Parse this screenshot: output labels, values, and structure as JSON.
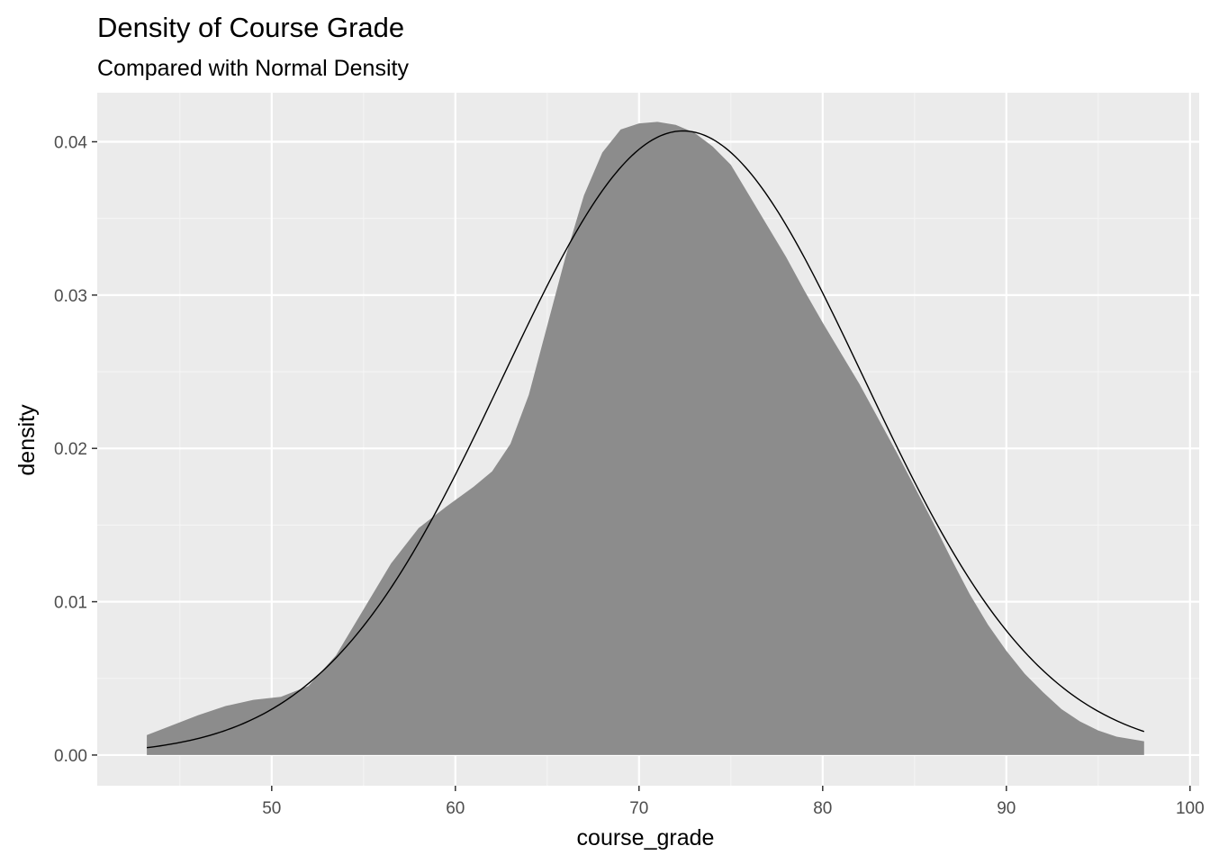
{
  "chart_data": {
    "type": "area",
    "title": "Density of Course Grade",
    "subtitle": "Compared with Normal Density",
    "xlabel": "course_grade",
    "ylabel": "density",
    "xlim": [
      40.5,
      100.5
    ],
    "ylim": [
      -0.002,
      0.0432
    ],
    "x_major_ticks": [
      50,
      60,
      70,
      80,
      90,
      100
    ],
    "x_tick_labels": [
      "50",
      "60",
      "70",
      "80",
      "90",
      "100"
    ],
    "y_major_ticks": [
      0.0,
      0.01,
      0.02,
      0.03,
      0.04
    ],
    "y_tick_labels": [
      "0.00",
      "0.01",
      "0.02",
      "0.03",
      "0.04"
    ],
    "grid": true,
    "colors": {
      "panel_background": "#ebebeb",
      "grid_major": "#ffffff",
      "grid_minor": "#f5f5f5",
      "density_fill": "#8c8c8c",
      "normal_line": "#000000"
    },
    "series": [
      {
        "kind": "density-area",
        "x": [
          43.2,
          44.5,
          46,
          47.5,
          49,
          50.5,
          52,
          53.5,
          55,
          56.5,
          58,
          59.5,
          61,
          62,
          63,
          64,
          65,
          66,
          67,
          68,
          69,
          70,
          71,
          72,
          73,
          74,
          75,
          76,
          77,
          78,
          79,
          80,
          81,
          82,
          83,
          84,
          85,
          86,
          87,
          88,
          89,
          90,
          91,
          92,
          93,
          94,
          95,
          96,
          97.5
        ],
        "y": [
          0.0013,
          0.0019,
          0.0026,
          0.0032,
          0.0036,
          0.0038,
          0.0045,
          0.0065,
          0.0095,
          0.0125,
          0.0148,
          0.0162,
          0.0175,
          0.0185,
          0.0203,
          0.0235,
          0.028,
          0.0325,
          0.0365,
          0.0393,
          0.0408,
          0.0412,
          0.0413,
          0.0411,
          0.0406,
          0.0397,
          0.0385,
          0.0365,
          0.0345,
          0.0325,
          0.0303,
          0.0282,
          0.0262,
          0.0242,
          0.022,
          0.0198,
          0.0175,
          0.0152,
          0.0128,
          0.0105,
          0.0085,
          0.0068,
          0.0053,
          0.0041,
          0.003,
          0.0022,
          0.0016,
          0.0012,
          0.0009
        ]
      },
      {
        "kind": "normal-curve",
        "mean": 72.4,
        "sd": 9.8,
        "x_from": 43.2,
        "x_to": 97.5
      }
    ]
  }
}
